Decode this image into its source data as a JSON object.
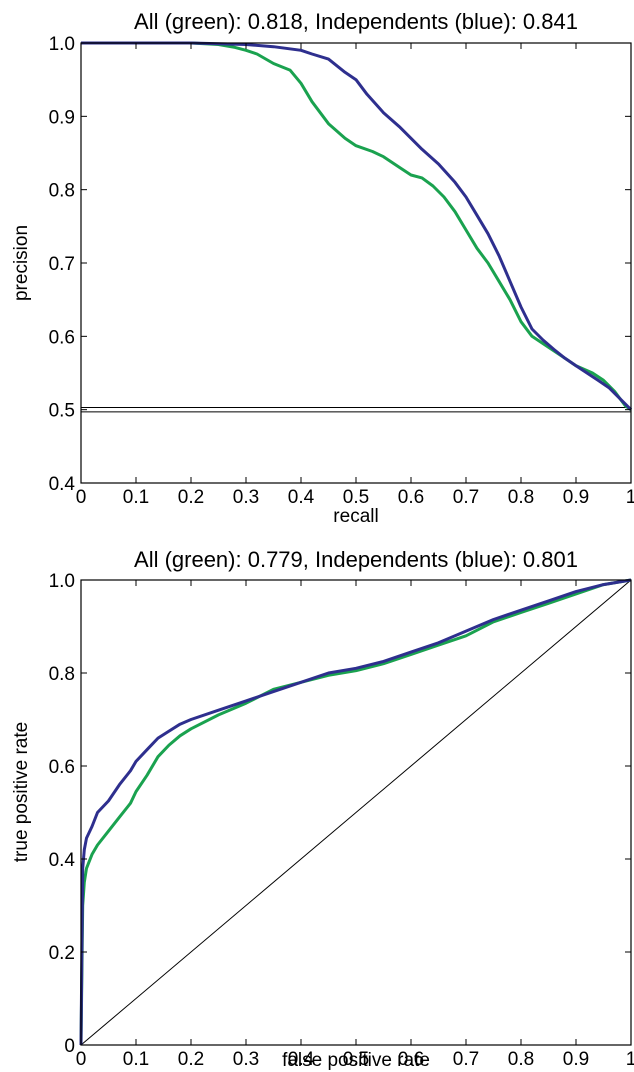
{
  "colors": {
    "green": "#1aa24f",
    "blue": "#2e2f8e",
    "reference": "#000000"
  },
  "chart_data": [
    {
      "type": "line",
      "title": "All (green): 0.818, Independents (blue): 0.841",
      "xlabel": "recall",
      "ylabel": "precision",
      "xlim": [
        0,
        1
      ],
      "ylim": [
        0.4,
        1.0
      ],
      "xticks": [
        0,
        0.1,
        0.2,
        0.3,
        0.4,
        0.5,
        0.6,
        0.7,
        0.8,
        0.9,
        1
      ],
      "xtick_labels": [
        "0",
        "0.1",
        "0.2",
        "0.3",
        "0.4",
        "0.5",
        "0.6",
        "0.7",
        "0.8",
        "0.9",
        "1"
      ],
      "yticks": [
        0.4,
        0.5,
        0.6,
        0.7,
        0.8,
        0.9,
        1.0
      ],
      "ytick_labels": [
        "0.4",
        "0.5",
        "0.6",
        "0.7",
        "0.8",
        "0.9",
        "1.0"
      ],
      "grid": false,
      "reference_lines": [
        {
          "orientation": "horizontal",
          "y": 0.497
        },
        {
          "orientation": "horizontal",
          "y": 0.503
        }
      ],
      "series": [
        {
          "color": "green",
          "x": [
            0,
            0.05,
            0.1,
            0.15,
            0.2,
            0.25,
            0.28,
            0.3,
            0.32,
            0.35,
            0.38,
            0.4,
            0.42,
            0.45,
            0.48,
            0.5,
            0.53,
            0.55,
            0.58,
            0.6,
            0.62,
            0.64,
            0.66,
            0.68,
            0.7,
            0.72,
            0.74,
            0.76,
            0.78,
            0.8,
            0.82,
            0.85,
            0.88,
            0.9,
            0.93,
            0.95,
            0.97,
            0.99,
            1.0
          ],
          "y": [
            1.0,
            1.0,
            1.0,
            1.0,
            1.0,
            0.998,
            0.994,
            0.99,
            0.985,
            0.972,
            0.963,
            0.945,
            0.92,
            0.89,
            0.87,
            0.86,
            0.852,
            0.845,
            0.83,
            0.82,
            0.816,
            0.805,
            0.79,
            0.77,
            0.745,
            0.72,
            0.7,
            0.675,
            0.65,
            0.62,
            0.6,
            0.585,
            0.57,
            0.56,
            0.55,
            0.54,
            0.525,
            0.505,
            0.5
          ]
        },
        {
          "color": "blue",
          "x": [
            0,
            0.05,
            0.1,
            0.15,
            0.2,
            0.25,
            0.3,
            0.35,
            0.4,
            0.42,
            0.45,
            0.48,
            0.5,
            0.52,
            0.55,
            0.58,
            0.6,
            0.62,
            0.65,
            0.68,
            0.7,
            0.72,
            0.74,
            0.76,
            0.78,
            0.8,
            0.82,
            0.84,
            0.86,
            0.88,
            0.9,
            0.92,
            0.94,
            0.96,
            0.98,
            1.0
          ],
          "y": [
            1.0,
            1.0,
            1.0,
            1.0,
            1.0,
            0.999,
            0.998,
            0.995,
            0.99,
            0.985,
            0.978,
            0.96,
            0.95,
            0.93,
            0.905,
            0.885,
            0.87,
            0.855,
            0.835,
            0.81,
            0.79,
            0.765,
            0.74,
            0.71,
            0.675,
            0.64,
            0.61,
            0.595,
            0.582,
            0.57,
            0.56,
            0.55,
            0.54,
            0.53,
            0.515,
            0.5
          ]
        }
      ]
    },
    {
      "type": "line",
      "title": "All (green): 0.779, Independents (blue): 0.801",
      "xlabel": "false positive rate",
      "ylabel": "true positive rate",
      "xlim": [
        0,
        1
      ],
      "ylim": [
        0,
        1.0
      ],
      "xticks": [
        0,
        0.1,
        0.2,
        0.3,
        0.4,
        0.5,
        0.6,
        0.7,
        0.8,
        0.9,
        1
      ],
      "xtick_labels": [
        "0",
        "0.1",
        "0.2",
        "0.3",
        "0.4",
        "0.5",
        "0.6",
        "0.7",
        "0.8",
        "0.9",
        "1"
      ],
      "yticks": [
        0,
        0.2,
        0.4,
        0.6,
        0.8,
        1.0
      ],
      "ytick_labels": [
        "0",
        "0.2",
        "0.4",
        "0.6",
        "0.8",
        "1.0"
      ],
      "grid": false,
      "reference_lines": [
        {
          "orientation": "diagonal",
          "x": [
            0,
            1
          ],
          "y": [
            0,
            1
          ]
        }
      ],
      "series": [
        {
          "color": "green",
          "x": [
            0,
            0.003,
            0.006,
            0.01,
            0.02,
            0.03,
            0.05,
            0.07,
            0.09,
            0.1,
            0.12,
            0.14,
            0.16,
            0.18,
            0.2,
            0.25,
            0.3,
            0.35,
            0.4,
            0.45,
            0.5,
            0.55,
            0.6,
            0.65,
            0.7,
            0.75,
            0.8,
            0.85,
            0.9,
            0.95,
            1.0
          ],
          "y": [
            0,
            0.3,
            0.35,
            0.38,
            0.41,
            0.43,
            0.46,
            0.49,
            0.52,
            0.545,
            0.58,
            0.62,
            0.645,
            0.665,
            0.68,
            0.71,
            0.735,
            0.765,
            0.78,
            0.795,
            0.805,
            0.82,
            0.84,
            0.86,
            0.88,
            0.91,
            0.93,
            0.95,
            0.97,
            0.99,
            1.0
          ]
        },
        {
          "color": "blue",
          "x": [
            0,
            0.003,
            0.006,
            0.01,
            0.02,
            0.03,
            0.05,
            0.07,
            0.09,
            0.1,
            0.12,
            0.14,
            0.16,
            0.18,
            0.2,
            0.25,
            0.3,
            0.35,
            0.4,
            0.45,
            0.5,
            0.55,
            0.6,
            0.65,
            0.7,
            0.75,
            0.8,
            0.85,
            0.9,
            0.95,
            1.0
          ],
          "y": [
            0,
            0.38,
            0.42,
            0.445,
            0.47,
            0.5,
            0.525,
            0.56,
            0.59,
            0.61,
            0.635,
            0.66,
            0.675,
            0.69,
            0.7,
            0.72,
            0.74,
            0.76,
            0.78,
            0.8,
            0.81,
            0.825,
            0.845,
            0.865,
            0.89,
            0.915,
            0.935,
            0.955,
            0.975,
            0.99,
            1.0
          ]
        }
      ]
    }
  ]
}
